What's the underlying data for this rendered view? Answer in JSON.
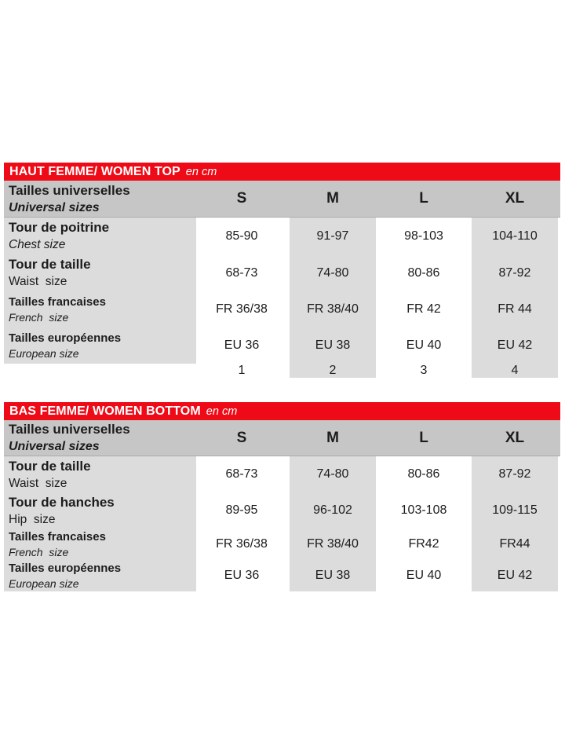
{
  "colors": {
    "header_bar_red": "#ee0b17",
    "column_header_gray": "#c6c6c6",
    "cell_gray": "#dcdcdc",
    "text": "#1c1c1c"
  },
  "tables": [
    {
      "title": "HAUT FEMME/ WOMEN TOP",
      "title_suffix": "en cm",
      "header": {
        "label_fr": "Tailles universelles",
        "label_en": "Universal sizes",
        "columns": [
          "S",
          "M",
          "L",
          "XL"
        ]
      },
      "rows": [
        {
          "label_fr": "Tour de poitrine",
          "label_en": "Chest size",
          "values": [
            "85-90",
            "91-97",
            "98-103",
            "104-110"
          ]
        },
        {
          "label_fr": "Tour de taille",
          "label_en": "Waist  size",
          "values": [
            "68-73",
            "74-80",
            "80-86",
            "87-92"
          ]
        },
        {
          "label_fr": "Tailles francaises",
          "label_en": "French  size",
          "values": [
            "FR 36/38",
            "FR 38/40",
            "FR 42",
            "FR 44"
          ]
        },
        {
          "label_fr": "Tailles européennes",
          "label_en": "European size",
          "values": [
            "EU 36",
            "EU 38",
            "EU 40",
            "EU 42"
          ]
        }
      ],
      "footer_numbers": [
        "1",
        "2",
        "3",
        "4"
      ]
    },
    {
      "title": "BAS FEMME/ WOMEN BOTTOM",
      "title_suffix": "en cm",
      "header": {
        "label_fr": "Tailles universelles",
        "label_en": "Universal sizes",
        "columns": [
          "S",
          "M",
          "L",
          "XL"
        ]
      },
      "rows": [
        {
          "label_fr": "Tour de taille",
          "label_en": "Waist  size",
          "values": [
            "68-73",
            "74-80",
            "80-86",
            "87-92"
          ]
        },
        {
          "label_fr": "Tour de hanches",
          "label_en": "Hip  size",
          "values": [
            "89-95",
            "96-102",
            "103-108",
            "109-115"
          ]
        },
        {
          "label_fr": "Tailles francaises",
          "label_en": "French  size",
          "values": [
            "FR 36/38",
            "FR 38/40",
            "FR42",
            "FR44"
          ]
        },
        {
          "label_fr": "Tailles européennes",
          "label_en": "European size",
          "values": [
            "EU 36",
            "EU 38",
            "EU 40",
            "EU 42"
          ]
        }
      ]
    }
  ]
}
